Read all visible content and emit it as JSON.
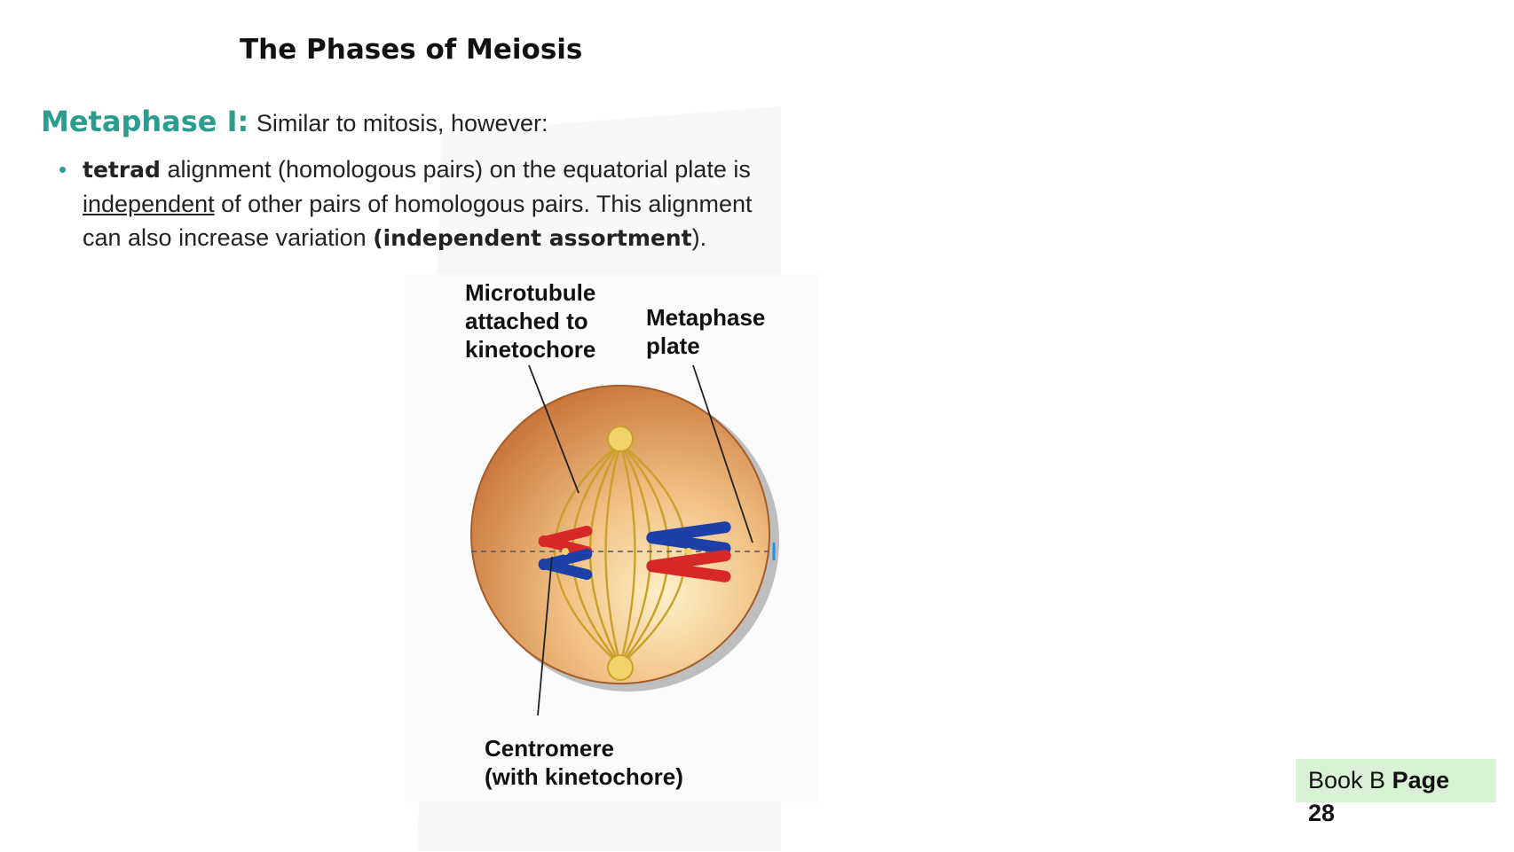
{
  "title": "The Phases of Meiosis",
  "heading": {
    "label": "Metaphase I:",
    "text": "Similar to mitosis, however:"
  },
  "bullet": {
    "bold_term": "tetrad",
    "line1_rest": " alignment (homologous pairs) on the equatorial plate is",
    "underlined": "independent",
    "line2_rest": " of other pairs of homologous pairs.  This alignment",
    "line3_start": "can also increase variation ",
    "bold_phrase": "(independent assortment",
    "line3_end": ")."
  },
  "diagram": {
    "label_microtubule": "Microtubule\nattached to\nkinetochore",
    "label_metaphase_plate": "Metaphase\nplate",
    "label_centromere": "Centromere\n(with kinetochore)"
  },
  "page_ref": {
    "book": "Book B ",
    "page_label": "Page",
    "page_number": "28"
  },
  "colors": {
    "accent": "#2a9d8f",
    "cell": "#d98a4a",
    "chromosome_red": "#d62828",
    "chromosome_blue": "#1d3fa8",
    "page_ref_bg": "#d9f2d6"
  }
}
